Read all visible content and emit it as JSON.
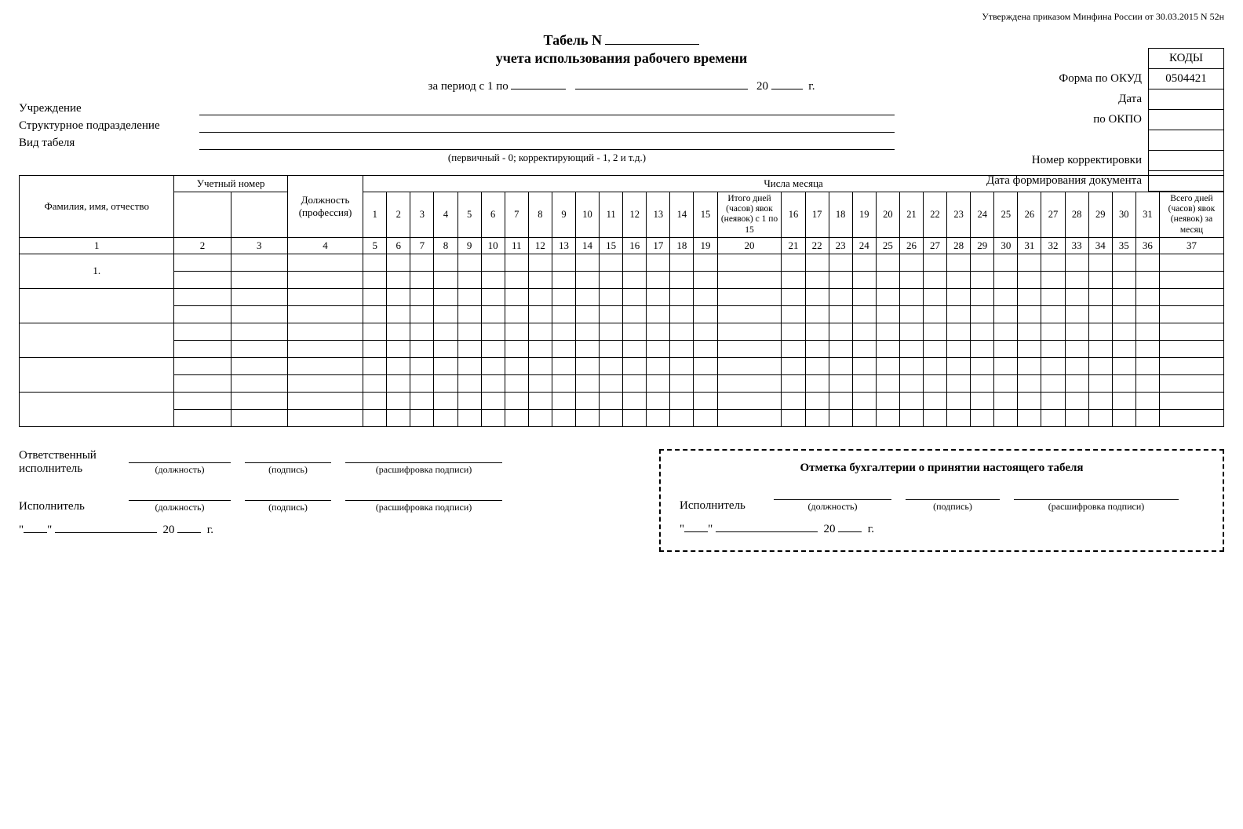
{
  "approval": "Утверждена приказом Минфина России от 30.03.2015 N 52н",
  "title_prefix": "Табель N",
  "subtitle": "учета использования рабочего времени",
  "period": {
    "prefix": "за период с 1 по",
    "year_label": "20",
    "year_suffix": "г."
  },
  "fields": {
    "institution": "Учреждение",
    "division": "Структурное подразделение",
    "tabel_type": "Вид табеля"
  },
  "tabel_note": "(первичный - 0; корректирующий - 1, 2 и т.д.)",
  "codes": {
    "header": "КОДЫ",
    "labels": {
      "okud": "Форма по ОКУД",
      "date": "Дата",
      "okpo": "по ОКПО",
      "corr": "Номер корректировки",
      "formdate": "Дата формирования документа"
    },
    "okud_value": "0504421"
  },
  "main_table": {
    "top_headers": {
      "uch_num": "Учетный номер",
      "month_days": "Числа месяца"
    },
    "headers": {
      "fio": "Фамилия, имя, отчество",
      "position": "Должность (профессия)",
      "days_1_15": [
        "1",
        "2",
        "3",
        "4",
        "5",
        "6",
        "7",
        "8",
        "9",
        "10",
        "11",
        "12",
        "13",
        "14",
        "15"
      ],
      "itogo_1_15": "Итого дней (часов) явок (неявок) с 1 по 15",
      "days_16_31": [
        "16",
        "17",
        "18",
        "19",
        "20",
        "21",
        "22",
        "23",
        "24",
        "25",
        "26",
        "27",
        "28",
        "29",
        "30",
        "31"
      ],
      "vsego": "Всего дней (часов) явок (неявок) за месяц"
    },
    "col_numbers": [
      "1",
      "2",
      "3",
      "4",
      "5",
      "6",
      "7",
      "8",
      "9",
      "10",
      "11",
      "12",
      "13",
      "14",
      "15",
      "16",
      "17",
      "18",
      "19",
      "20",
      "21",
      "22",
      "23",
      "24",
      "25",
      "26",
      "27",
      "28",
      "29",
      "30",
      "31",
      "32",
      "33",
      "34",
      "35",
      "36",
      "37"
    ],
    "rows": [
      {
        "label": "1."
      },
      {
        "label": ""
      },
      {
        "label": ""
      },
      {
        "label": ""
      },
      {
        "label": ""
      }
    ]
  },
  "footer": {
    "responsible": "Ответственный исполнитель",
    "executor": "Исполнитель",
    "caps": {
      "position": "(должность)",
      "sign": "(подпись)",
      "decode": "(расшифровка подписи)"
    },
    "date": {
      "y": "20",
      "suf": "г."
    }
  },
  "acct": {
    "title": "Отметка бухгалтерии о принятии настоящего табеля",
    "executor": "Исполнитель",
    "caps": {
      "position": "(должность)",
      "sign": "(подпись)",
      "decode": "(расшифровка подписи)"
    },
    "date": {
      "y": "20",
      "suf": "г."
    }
  },
  "style": {
    "border_color": "#000000",
    "background": "#ffffff",
    "font_family": "Times New Roman",
    "title_fontsize_pt": 14,
    "body_fontsize_pt": 11
  }
}
